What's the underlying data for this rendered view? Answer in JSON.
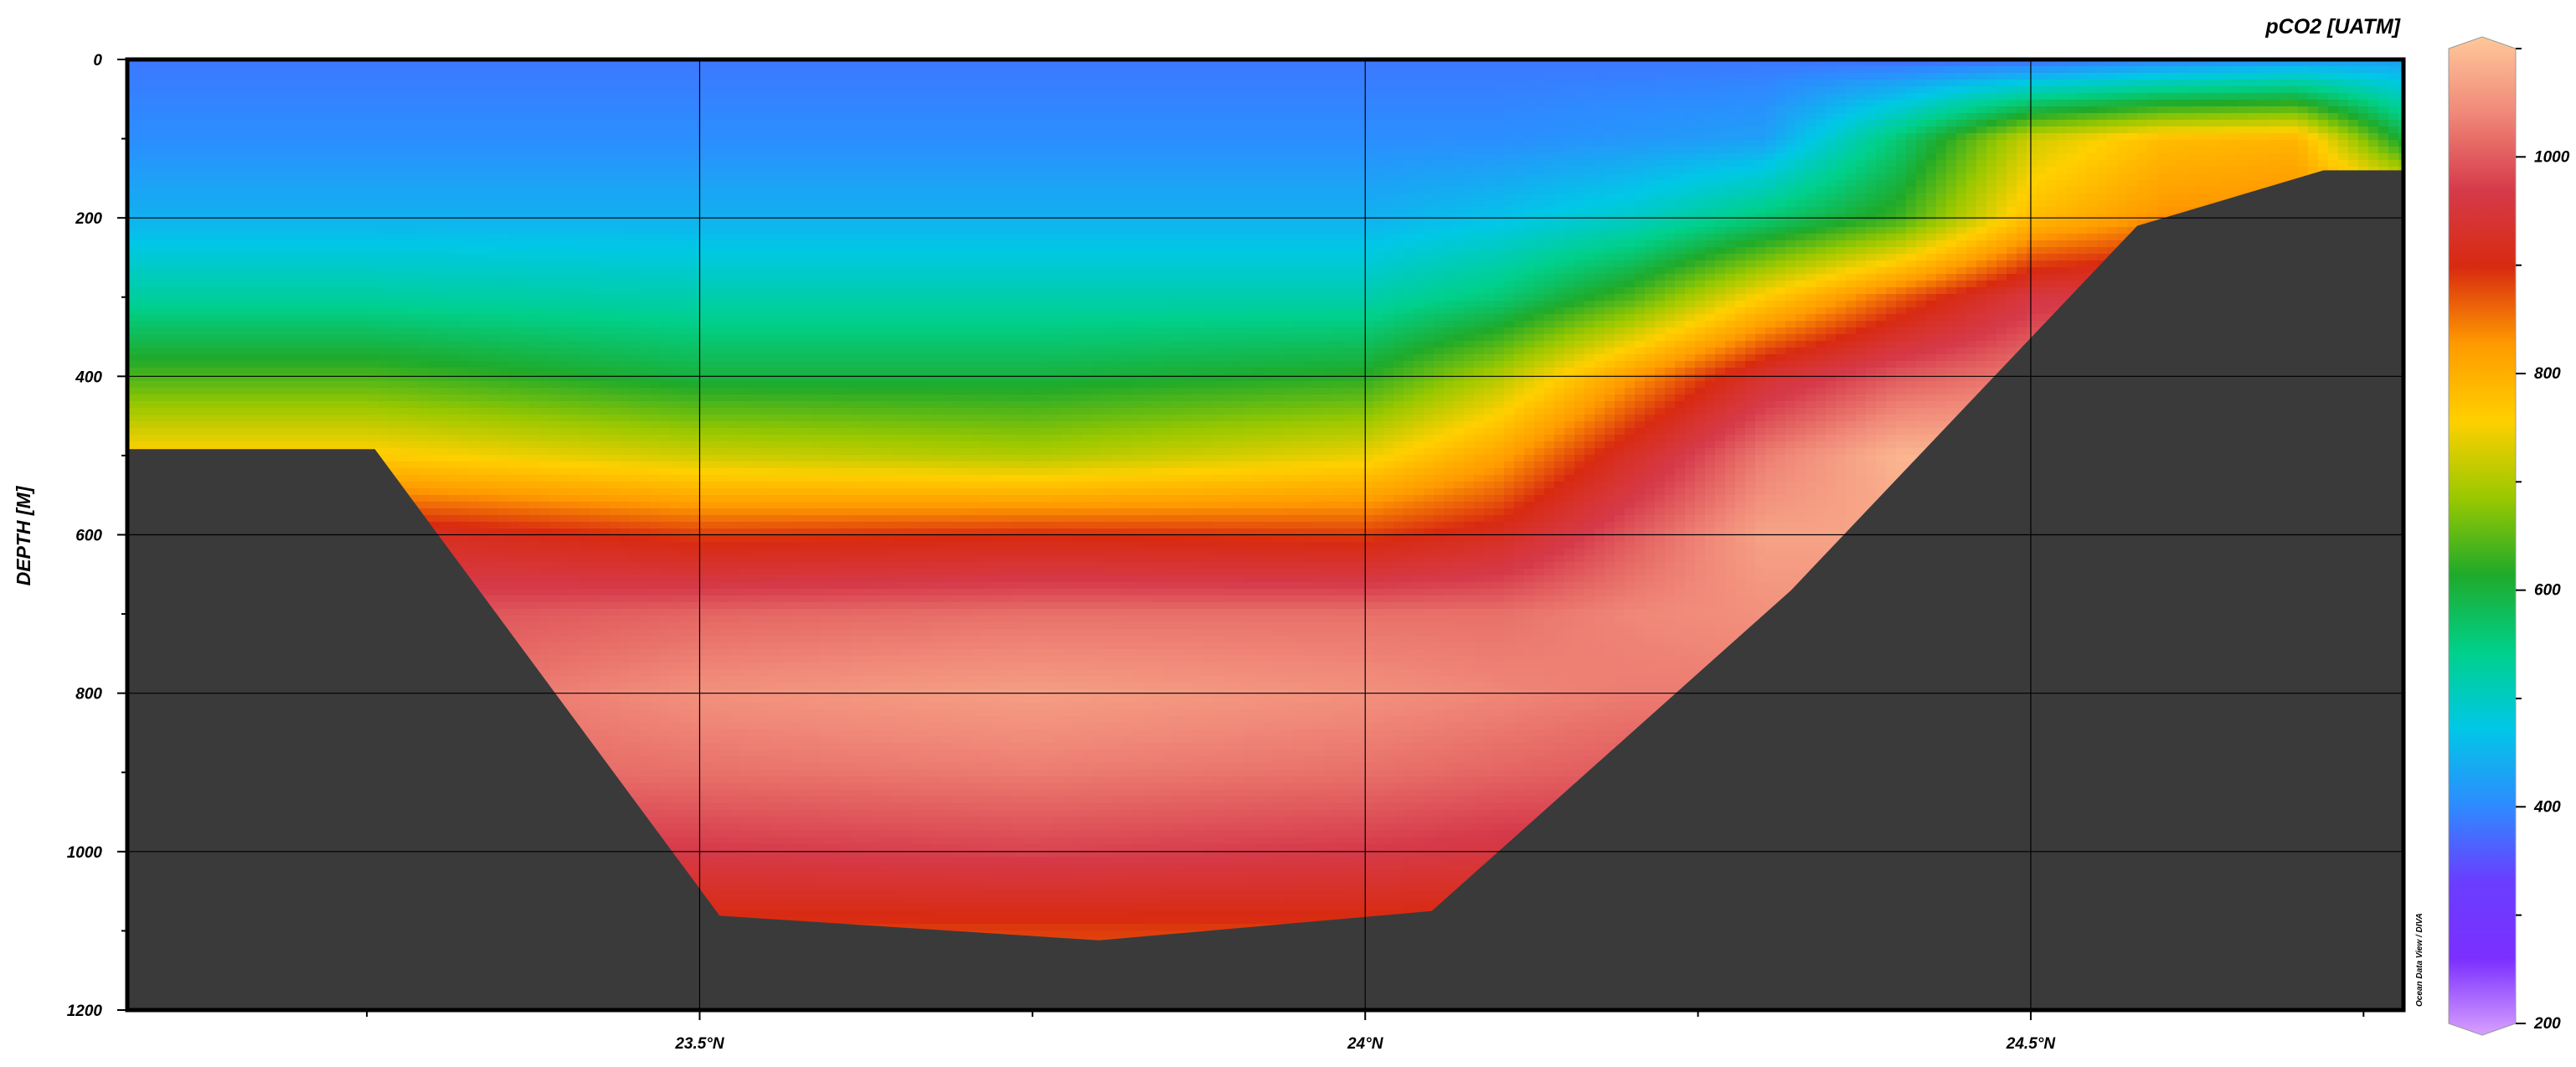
{
  "chart_data": {
    "type": "heatmap",
    "title": "pCO2 [UATM]",
    "xlabel": "",
    "ylabel": "DEPTH [M]",
    "x_ticks": [
      "23.5°N",
      "24°N",
      "24.5°N"
    ],
    "x_tick_values": [
      23.5,
      24.0,
      24.5
    ],
    "x_minor_tick_values": [
      23.25,
      23.75,
      24.25,
      24.75
    ],
    "xlim": [
      23.07,
      24.78
    ],
    "y_ticks": [
      "0",
      "200",
      "400",
      "600",
      "800",
      "1000",
      "1200"
    ],
    "y_tick_values": [
      0,
      200,
      400,
      600,
      800,
      1000,
      1200
    ],
    "ylim": [
      1200,
      0
    ],
    "y_inverted": true,
    "grid": true,
    "colorbar": {
      "title": "pCO2 [UATM]",
      "ticks": [
        "200",
        "400",
        "600",
        "800",
        "1000"
      ],
      "tick_values": [
        200,
        400,
        600,
        800,
        1000
      ],
      "range": [
        200,
        1100
      ],
      "colormap": [
        "#d7a0ff",
        "#7b2fff",
        "#6a3dff",
        "#2d8cff",
        "#00c8e6",
        "#00d08a",
        "#1faa2a",
        "#9ac800",
        "#ffd000",
        "#ff9a00",
        "#d82a10",
        "#d63a4a",
        "#f08878",
        "#ffc89a"
      ]
    },
    "field": {
      "x": [
        23.07,
        23.25,
        23.5,
        23.75,
        24.0,
        24.1,
        24.2,
        24.3,
        24.4,
        24.5,
        24.6,
        24.7,
        24.78
      ],
      "y": [
        0,
        100,
        200,
        300,
        400,
        500,
        600,
        700,
        800,
        900,
        1000,
        1100,
        1200
      ],
      "units": "uatm",
      "values": [
        [
          390,
          390,
          390,
          390,
          390,
          390,
          390,
          390,
          380,
          380,
          400,
          420,
          430
        ],
        [
          410,
          410,
          410,
          410,
          410,
          410,
          420,
          430,
          560,
          720,
          780,
          790,
          600
        ],
        [
          450,
          450,
          450,
          450,
          450,
          470,
          500,
          560,
          630,
          780,
          830,
          840,
          840
        ],
        [
          530,
          530,
          520,
          520,
          520,
          560,
          640,
          760,
          860,
          950,
          960,
          960,
          960
        ],
        [
          640,
          640,
          600,
          600,
          620,
          700,
          820,
          930,
          990,
          1020,
          1020,
          1020,
          1020
        ],
        [
          760,
          760,
          720,
          700,
          740,
          810,
          920,
          1020,
          1080,
          1080,
          1080,
          1080,
          1080
        ],
        [
          920,
          920,
          880,
          890,
          880,
          910,
          990,
          1060,
          1060,
          1060,
          1060,
          1060,
          1060
        ],
        [
          980,
          980,
          1000,
          1010,
          1010,
          1010,
          1030,
          1040,
          1040,
          1040,
          1040,
          1040,
          1040
        ],
        [
          1000,
          1000,
          1040,
          1055,
          1040,
          1030,
          1020,
          1020,
          1020,
          1020,
          1020,
          1020,
          1020
        ],
        [
          1000,
          1000,
          1010,
          1020,
          1010,
          1000,
          990,
          990,
          990,
          990,
          990,
          990,
          990
        ],
        [
          960,
          960,
          960,
          970,
          960,
          950,
          950,
          950,
          950,
          950,
          950,
          950,
          950
        ],
        [
          880,
          880,
          880,
          880,
          880,
          880,
          880,
          880,
          880,
          880,
          880,
          880,
          880
        ],
        [
          860,
          860,
          860,
          860,
          860,
          860,
          860,
          860,
          860,
          860,
          860,
          860,
          860
        ]
      ]
    },
    "seafloor": {
      "color": "#3a3a3a",
      "x": [
        23.07,
        23.256,
        23.515,
        23.8,
        24.05,
        24.32,
        24.58,
        24.72,
        24.78
      ],
      "depth": [
        492,
        492,
        1081,
        1112,
        1075,
        670,
        210,
        140,
        140
      ]
    },
    "credit": "Ocean Data View / DIVA"
  }
}
